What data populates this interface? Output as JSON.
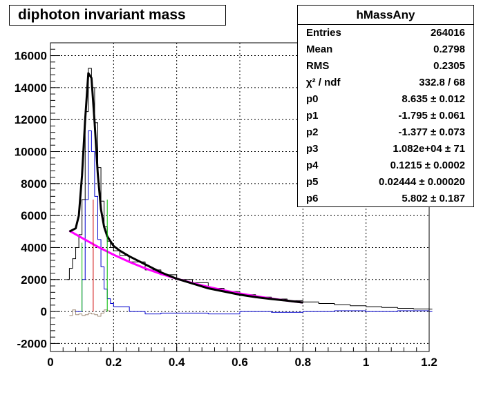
{
  "title": "diphoton invariant mass",
  "stats": {
    "name": "hMassAny",
    "rows": [
      {
        "label": "Entries",
        "value": "264016"
      },
      {
        "label": "Mean",
        "value": "0.2798"
      },
      {
        "label": "RMS",
        "value": "0.2305"
      },
      {
        "label": "χ² / ndf",
        "value": "332.8 / 68"
      },
      {
        "label": "p0",
        "value": "8.635 ± 0.012"
      },
      {
        "label": "p1",
        "value": "-1.795 ± 0.061"
      },
      {
        "label": "p2",
        "value": "-1.377 ± 0.073"
      },
      {
        "label": "p3",
        "value": "1.082e+04 ± 71"
      },
      {
        "label": "p4",
        "value": "0.1215 ± 0.0002"
      },
      {
        "label": "p5",
        "value": "0.02444 ± 0.00020"
      },
      {
        "label": "p6",
        "value": "5.802 ± 0.187"
      }
    ]
  },
  "colors": {
    "histogram": "#000000",
    "fit": "#000000",
    "background_fit": "#ff00ff",
    "residual": "#0000cc",
    "signal_marker": "#cc0000",
    "window_marker": "#00bb00",
    "sideband": "#a08c78",
    "grid": "#000000"
  },
  "chart_data": {
    "type": "line",
    "title": "diphoton invariant mass",
    "xlabel": "",
    "ylabel": "",
    "xlim": [
      0,
      1.2
    ],
    "ylim": [
      -2500,
      16800
    ],
    "x_ticks": [
      "0",
      "0.2",
      "0.4",
      "0.6",
      "0.8",
      "1",
      "1.2"
    ],
    "y_ticks": [
      "-2000",
      "0",
      "2000",
      "4000",
      "6000",
      "8000",
      "10000",
      "12000",
      "14000",
      "16000"
    ],
    "grid": true,
    "legend": "none",
    "series": [
      {
        "style": "histogram",
        "x": [
          0.05,
          0.06,
          0.07,
          0.08,
          0.09,
          0.1,
          0.11,
          0.12,
          0.13,
          0.14,
          0.15,
          0.16,
          0.17,
          0.18,
          0.19,
          0.2,
          0.22,
          0.25,
          0.3,
          0.35,
          0.4,
          0.45,
          0.5,
          0.55,
          0.6,
          0.65,
          0.7,
          0.75,
          0.8,
          0.85,
          0.9,
          0.95,
          1.0,
          1.05,
          1.1,
          1.15,
          1.2
        ],
        "values": [
          2000,
          2700,
          3300,
          4000,
          4800,
          7000,
          12500,
          15200,
          14000,
          11800,
          9000,
          6900,
          5300,
          4400,
          4000,
          3800,
          3500,
          3100,
          2600,
          2300,
          2000,
          1800,
          1450,
          1250,
          1050,
          900,
          780,
          680,
          600,
          500,
          420,
          360,
          300,
          250,
          200,
          160,
          150
        ]
      },
      {
        "style": "fit",
        "x": [
          0.06,
          0.08,
          0.09,
          0.1,
          0.11,
          0.12,
          0.13,
          0.14,
          0.15,
          0.16,
          0.17,
          0.18,
          0.2,
          0.22,
          0.25,
          0.3,
          0.35,
          0.4,
          0.45,
          0.5,
          0.55,
          0.6,
          0.65,
          0.7,
          0.75,
          0.8
        ],
        "values": [
          5000,
          5200,
          6000,
          8500,
          12000,
          14900,
          14600,
          11800,
          8600,
          6400,
          5300,
          4700,
          4100,
          3800,
          3450,
          2950,
          2450,
          2050,
          1750,
          1450,
          1250,
          1050,
          900,
          780,
          680,
          560
        ]
      },
      {
        "style": "background_fit",
        "x": [
          0.06,
          0.1,
          0.15,
          0.2,
          0.25,
          0.3,
          0.35,
          0.4,
          0.45,
          0.5,
          0.55,
          0.6,
          0.65,
          0.7,
          0.75,
          0.8
        ],
        "values": [
          5050,
          4600,
          4050,
          3550,
          3100,
          2700,
          2350,
          2050,
          1780,
          1540,
          1320,
          1130,
          960,
          810,
          680,
          560
        ]
      },
      {
        "style": "residual",
        "x": [
          0.08,
          0.09,
          0.1,
          0.11,
          0.12,
          0.13,
          0.14,
          0.15,
          0.16,
          0.17,
          0.18,
          0.19,
          0.2,
          0.25,
          0.3,
          0.35,
          0.4,
          0.5,
          0.6,
          0.7,
          0.8,
          0.9,
          1.0,
          1.1,
          1.2
        ],
        "values": [
          0,
          0,
          2000,
          7000,
          11300,
          10000,
          7200,
          4500,
          2800,
          1400,
          800,
          500,
          300,
          0,
          -150,
          -100,
          -100,
          -150,
          0,
          -50,
          0,
          50,
          0,
          50,
          0
        ]
      },
      {
        "style": "sideband",
        "x": [
          0.06,
          0.07,
          0.08,
          0.09,
          0.1,
          0.11,
          0.12,
          0.13,
          0.14,
          0.15,
          0.16,
          0.17,
          0.18
        ],
        "values": [
          -250,
          100,
          -200,
          -150,
          -250,
          -200,
          -100,
          -150,
          -200,
          -300,
          -100,
          100,
          50
        ]
      }
    ],
    "markers": [
      {
        "style": "window_marker",
        "x": 0.1,
        "value": 4300
      },
      {
        "style": "signal_marker",
        "x": 0.1355,
        "value": 7000
      },
      {
        "style": "window_marker",
        "x": 0.18,
        "value": 7000
      }
    ]
  }
}
